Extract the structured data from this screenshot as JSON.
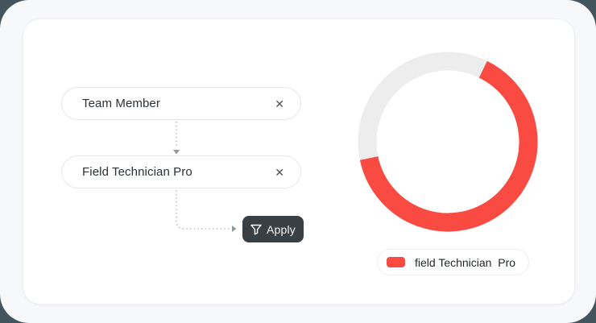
{
  "theme": {
    "page_background": "#44545c",
    "panel_background": "#f7f8fa",
    "card_background": "#ffffff",
    "accent_red": "#fa4b42",
    "button_dark": "#3a3f44",
    "connector_gray": "#bcc0c4"
  },
  "icons": {
    "clear": "✕",
    "filter": "funnel",
    "arrow_down": "triangle-down",
    "arrow_right": "triangle-right"
  },
  "filter_panel": {
    "filters": [
      {
        "label": "Team Member"
      },
      {
        "label": "Field Technician Pro"
      }
    ],
    "apply_button": {
      "label": "Apply"
    }
  },
  "chart_data": {
    "type": "donut",
    "title": "",
    "start_angle_deg": 26,
    "series": [
      {
        "name": "field Technician  Pro",
        "fraction": 0.645,
        "color": "#fa4b42"
      }
    ],
    "remainder": {
      "fraction": 0.355,
      "color": "#ededed"
    },
    "ring_thickness_px": 23,
    "legend": {
      "position": "bottom",
      "items": [
        {
          "label": "field Technician  Pro",
          "color": "#fa4b42"
        }
      ]
    }
  }
}
